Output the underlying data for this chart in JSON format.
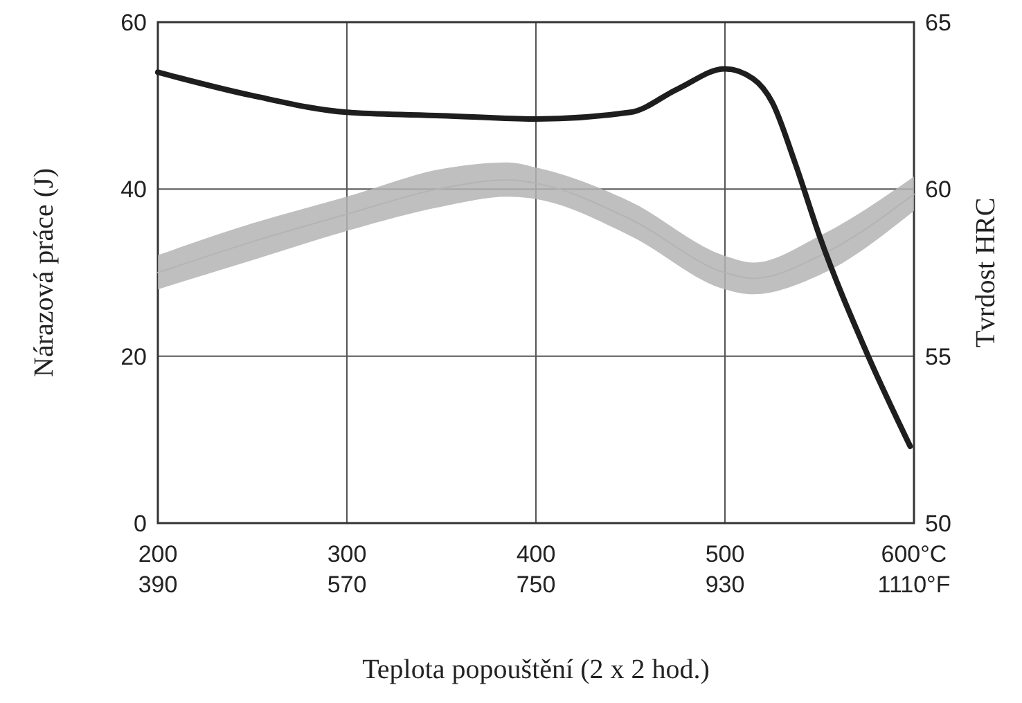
{
  "chart_data": {
    "type": "line",
    "xlabel": "Teplota popouštění (2 x 2 hod.)",
    "ylabel": "Nárazová práce (J)",
    "y2label": "Tvrdost HRC",
    "xlim": [
      200,
      600
    ],
    "xticks": [
      200,
      300,
      400,
      500,
      {
        "value": 600,
        "label": "600°C"
      }
    ],
    "x2lim": [
      390,
      1110
    ],
    "x2ticks": [
      390,
      570,
      750,
      930,
      {
        "value": 1110,
        "label": "1110°F"
      }
    ],
    "ylim": [
      0,
      60
    ],
    "yticks": [
      0,
      20,
      40,
      60
    ],
    "y2lim": [
      50,
      65
    ],
    "y2ticks": [
      50,
      55,
      60,
      65
    ],
    "grid": true,
    "line_style": "solid",
    "marker": "none",
    "series": [
      {
        "color": "#b4b4b4",
        "x": [
          200,
          250,
          300,
          350,
          385,
          400,
          450,
          500,
          515,
          550,
          600
        ],
        "values": [
          30,
          33.7,
          37,
          40.1,
          41.1,
          40.7,
          36.4,
          30,
          29.3,
          32,
          39.4
        ],
        "lower": [
          28,
          31.5,
          35,
          37.9,
          39.1,
          38.8,
          34.4,
          28,
          27.4,
          29.7,
          37.4
        ],
        "upper": [
          32.1,
          35.9,
          39.1,
          42.4,
          43.2,
          42.6,
          38.5,
          32,
          31.2,
          34.4,
          41.5
        ]
      },
      {
        "axis": "y2",
        "color": "#1e1e1e",
        "x": [
          200,
          250,
          300,
          350,
          400,
          450,
          475,
          500,
          515,
          525,
          537,
          550,
          575,
          598
        ],
        "values": [
          63.5,
          62.8,
          62.3,
          62.2,
          62.1,
          62.3,
          63,
          63.6,
          63.3,
          62.6,
          60.8,
          58.6,
          55.1,
          52.3
        ]
      }
    ]
  }
}
